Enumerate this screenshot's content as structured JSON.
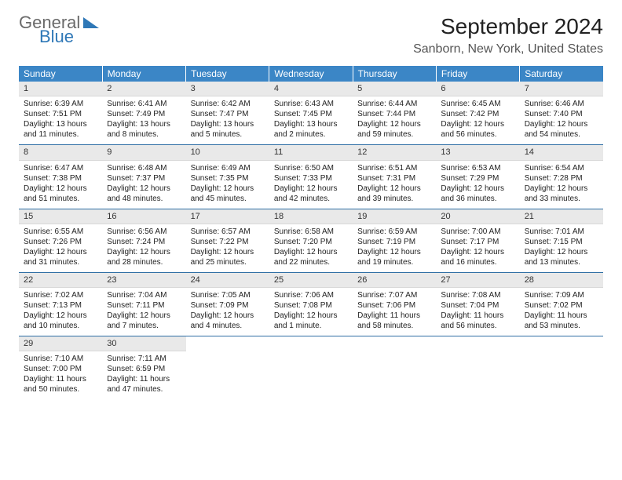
{
  "brand": {
    "part1": "General",
    "part2": "Blue"
  },
  "title": "September 2024",
  "location": "Sanborn, New York, United States",
  "colors": {
    "header_bg": "#3b86c6",
    "header_text": "#ffffff",
    "daynum_bg": "#e9e9e9",
    "text": "#222222",
    "week_sep": "#2f6fa5",
    "logo_blue": "#2f78b7",
    "logo_gray": "#6a6a6a"
  },
  "dow": [
    "Sunday",
    "Monday",
    "Tuesday",
    "Wednesday",
    "Thursday",
    "Friday",
    "Saturday"
  ],
  "weeks": [
    [
      {
        "n": "1",
        "sr": "6:39 AM",
        "ss": "7:51 PM",
        "dl": "13 hours and 11 minutes."
      },
      {
        "n": "2",
        "sr": "6:41 AM",
        "ss": "7:49 PM",
        "dl": "13 hours and 8 minutes."
      },
      {
        "n": "3",
        "sr": "6:42 AM",
        "ss": "7:47 PM",
        "dl": "13 hours and 5 minutes."
      },
      {
        "n": "4",
        "sr": "6:43 AM",
        "ss": "7:45 PM",
        "dl": "13 hours and 2 minutes."
      },
      {
        "n": "5",
        "sr": "6:44 AM",
        "ss": "7:44 PM",
        "dl": "12 hours and 59 minutes."
      },
      {
        "n": "6",
        "sr": "6:45 AM",
        "ss": "7:42 PM",
        "dl": "12 hours and 56 minutes."
      },
      {
        "n": "7",
        "sr": "6:46 AM",
        "ss": "7:40 PM",
        "dl": "12 hours and 54 minutes."
      }
    ],
    [
      {
        "n": "8",
        "sr": "6:47 AM",
        "ss": "7:38 PM",
        "dl": "12 hours and 51 minutes."
      },
      {
        "n": "9",
        "sr": "6:48 AM",
        "ss": "7:37 PM",
        "dl": "12 hours and 48 minutes."
      },
      {
        "n": "10",
        "sr": "6:49 AM",
        "ss": "7:35 PM",
        "dl": "12 hours and 45 minutes."
      },
      {
        "n": "11",
        "sr": "6:50 AM",
        "ss": "7:33 PM",
        "dl": "12 hours and 42 minutes."
      },
      {
        "n": "12",
        "sr": "6:51 AM",
        "ss": "7:31 PM",
        "dl": "12 hours and 39 minutes."
      },
      {
        "n": "13",
        "sr": "6:53 AM",
        "ss": "7:29 PM",
        "dl": "12 hours and 36 minutes."
      },
      {
        "n": "14",
        "sr": "6:54 AM",
        "ss": "7:28 PM",
        "dl": "12 hours and 33 minutes."
      }
    ],
    [
      {
        "n": "15",
        "sr": "6:55 AM",
        "ss": "7:26 PM",
        "dl": "12 hours and 31 minutes."
      },
      {
        "n": "16",
        "sr": "6:56 AM",
        "ss": "7:24 PM",
        "dl": "12 hours and 28 minutes."
      },
      {
        "n": "17",
        "sr": "6:57 AM",
        "ss": "7:22 PM",
        "dl": "12 hours and 25 minutes."
      },
      {
        "n": "18",
        "sr": "6:58 AM",
        "ss": "7:20 PM",
        "dl": "12 hours and 22 minutes."
      },
      {
        "n": "19",
        "sr": "6:59 AM",
        "ss": "7:19 PM",
        "dl": "12 hours and 19 minutes."
      },
      {
        "n": "20",
        "sr": "7:00 AM",
        "ss": "7:17 PM",
        "dl": "12 hours and 16 minutes."
      },
      {
        "n": "21",
        "sr": "7:01 AM",
        "ss": "7:15 PM",
        "dl": "12 hours and 13 minutes."
      }
    ],
    [
      {
        "n": "22",
        "sr": "7:02 AM",
        "ss": "7:13 PM",
        "dl": "12 hours and 10 minutes."
      },
      {
        "n": "23",
        "sr": "7:04 AM",
        "ss": "7:11 PM",
        "dl": "12 hours and 7 minutes."
      },
      {
        "n": "24",
        "sr": "7:05 AM",
        "ss": "7:09 PM",
        "dl": "12 hours and 4 minutes."
      },
      {
        "n": "25",
        "sr": "7:06 AM",
        "ss": "7:08 PM",
        "dl": "12 hours and 1 minute."
      },
      {
        "n": "26",
        "sr": "7:07 AM",
        "ss": "7:06 PM",
        "dl": "11 hours and 58 minutes."
      },
      {
        "n": "27",
        "sr": "7:08 AM",
        "ss": "7:04 PM",
        "dl": "11 hours and 56 minutes."
      },
      {
        "n": "28",
        "sr": "7:09 AM",
        "ss": "7:02 PM",
        "dl": "11 hours and 53 minutes."
      }
    ],
    [
      {
        "n": "29",
        "sr": "7:10 AM",
        "ss": "7:00 PM",
        "dl": "11 hours and 50 minutes."
      },
      {
        "n": "30",
        "sr": "7:11 AM",
        "ss": "6:59 PM",
        "dl": "11 hours and 47 minutes."
      },
      null,
      null,
      null,
      null,
      null
    ]
  ],
  "labels": {
    "sunrise": "Sunrise:",
    "sunset": "Sunset:",
    "daylight": "Daylight:"
  }
}
